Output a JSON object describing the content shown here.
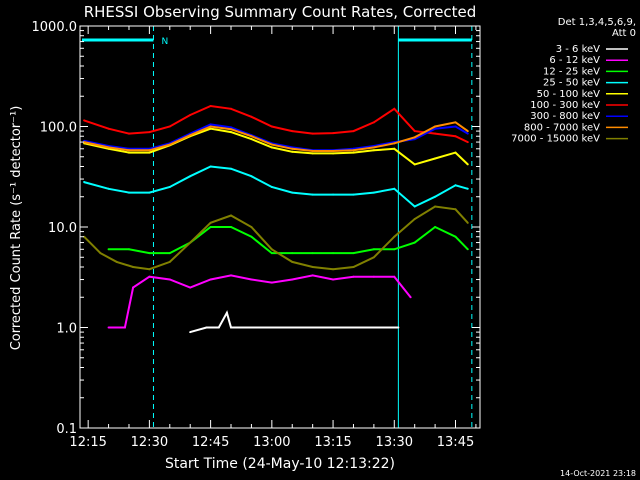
{
  "chart_data": {
    "type": "line",
    "title": "RHESSI Observing Summary Count Rates, Corrected",
    "xlabel": "Start Time (24-May-10 12:13:22)",
    "ylabel": "Corrected Count Rate (s⁻¹ detector⁻¹)",
    "y_scale": "log",
    "ylim": [
      0.1,
      1000
    ],
    "y_ticks": [
      "1000.0",
      "100.0",
      "10.0",
      "1.0",
      "0.1"
    ],
    "y_tick_values": [
      1000,
      100,
      10,
      1,
      0.1
    ],
    "x_range_minutes": [
      "12:13",
      "13:51"
    ],
    "x_ticks": [
      "12:15",
      "12:30",
      "12:45",
      "13:00",
      "13:15",
      "13:30",
      "13:45"
    ],
    "legend_title": [
      "Det 1,3,4,5,6,9,",
      "Att 0"
    ],
    "legend_position": "top-right, outside plot",
    "markers": {
      "night_label": "N",
      "night_end": "12:31",
      "day_start": "13:31",
      "day_end": "13:49"
    },
    "series": [
      {
        "name": "3 - 6 keV",
        "color": "#ffffff",
        "x": [
          "12:40",
          "12:44",
          "12:47",
          "12:49",
          "12:50",
          "12:52",
          "12:56",
          "13:00",
          "13:05",
          "13:10",
          "13:15",
          "13:20",
          "13:25",
          "13:31"
        ],
        "y": [
          0.9,
          1.0,
          1.0,
          1.4,
          1.0,
          1.0,
          1.0,
          1.0,
          1.0,
          1.0,
          1.0,
          1.0,
          1.0,
          1.0
        ]
      },
      {
        "name": "6 - 12 keV",
        "color": "#ff00ff",
        "x": [
          "12:20",
          "12:24",
          "12:26",
          "12:30",
          "12:35",
          "12:40",
          "12:45",
          "12:50",
          "12:55",
          "13:00",
          "13:05",
          "13:10",
          "13:15",
          "13:20",
          "13:25",
          "13:30",
          "13:34"
        ],
        "y": [
          1.0,
          1.0,
          2.5,
          3.2,
          3.0,
          2.5,
          3.0,
          3.3,
          3.0,
          2.8,
          3.0,
          3.3,
          3.0,
          3.2,
          3.2,
          3.2,
          2.0
        ]
      },
      {
        "name": "12 - 25 keV",
        "color": "#00ff00",
        "x": [
          "12:20",
          "12:25",
          "12:30",
          "12:35",
          "12:40",
          "12:45",
          "12:50",
          "12:55",
          "13:00",
          "13:05",
          "13:10",
          "13:15",
          "13:20",
          "13:25",
          "13:30",
          "13:35",
          "13:40",
          "13:45",
          "13:48"
        ],
        "y": [
          6.0,
          6.0,
          5.5,
          5.5,
          7.0,
          10.0,
          10.0,
          8.0,
          5.5,
          5.5,
          5.5,
          5.5,
          5.5,
          6.0,
          6.0,
          7.0,
          10.0,
          8.0,
          6.0
        ]
      },
      {
        "name": "25 - 50 keV",
        "color": "#00ffff",
        "x": [
          "12:14",
          "12:20",
          "12:25",
          "12:30",
          "12:35",
          "12:40",
          "12:45",
          "12:50",
          "12:55",
          "13:00",
          "13:05",
          "13:10",
          "13:15",
          "13:20",
          "13:25",
          "13:30",
          "13:35",
          "13:40",
          "13:45",
          "13:48"
        ],
        "y": [
          28,
          24,
          22,
          22,
          25,
          32,
          40,
          38,
          32,
          25,
          22,
          21,
          21,
          21,
          22,
          24,
          16,
          20,
          26,
          24
        ]
      },
      {
        "name": "50 - 100 keV",
        "color": "#ffff00",
        "x": [
          "12:14",
          "12:20",
          "12:25",
          "12:30",
          "12:35",
          "12:40",
          "12:45",
          "12:50",
          "12:55",
          "13:00",
          "13:05",
          "13:10",
          "13:15",
          "13:20",
          "13:25",
          "13:30",
          "13:35",
          "13:40",
          "13:45",
          "13:48"
        ],
        "y": [
          68,
          60,
          55,
          55,
          65,
          80,
          95,
          88,
          75,
          62,
          56,
          54,
          54,
          55,
          58,
          60,
          42,
          48,
          55,
          42
        ]
      },
      {
        "name": "100 - 300 keV",
        "color": "#ff0000",
        "x": [
          "12:14",
          "12:20",
          "12:25",
          "12:30",
          "12:35",
          "12:40",
          "12:45",
          "12:50",
          "12:55",
          "13:00",
          "13:05",
          "13:10",
          "13:15",
          "13:20",
          "13:25",
          "13:30",
          "13:35",
          "13:40",
          "13:45",
          "13:48"
        ],
        "y": [
          115,
          95,
          85,
          88,
          100,
          130,
          160,
          150,
          125,
          100,
          90,
          85,
          86,
          90,
          110,
          150,
          90,
          85,
          80,
          70
        ]
      },
      {
        "name": "300 - 800 keV",
        "color": "#0000ff",
        "x": [
          "12:14",
          "12:20",
          "12:25",
          "12:30",
          "12:35",
          "12:40",
          "12:45",
          "12:50",
          "12:55",
          "13:00",
          "13:05",
          "13:10",
          "13:15",
          "13:20",
          "13:25",
          "13:30",
          "13:35",
          "13:40",
          "13:45",
          "13:48"
        ],
        "y": [
          72,
          64,
          60,
          60,
          68,
          85,
          105,
          98,
          82,
          68,
          62,
          58,
          58,
          60,
          64,
          70,
          75,
          95,
          100,
          85
        ]
      },
      {
        "name": "800 - 7000 keV",
        "color": "#ff8c00",
        "x": [
          "12:14",
          "12:20",
          "12:25",
          "12:30",
          "12:35",
          "12:40",
          "12:45",
          "12:50",
          "12:55",
          "13:00",
          "13:05",
          "13:10",
          "13:15",
          "13:20",
          "13:25",
          "13:30",
          "13:35",
          "13:40",
          "13:45",
          "13:48"
        ],
        "y": [
          70,
          62,
          58,
          58,
          66,
          82,
          100,
          94,
          80,
          66,
          60,
          57,
          57,
          58,
          62,
          68,
          78,
          100,
          110,
          90
        ]
      },
      {
        "name": "7000 - 15000 keV",
        "color": "#808000",
        "x": [
          "12:14",
          "12:18",
          "12:22",
          "12:26",
          "12:30",
          "12:35",
          "12:40",
          "12:45",
          "12:50",
          "12:55",
          "13:00",
          "13:05",
          "13:10",
          "13:15",
          "13:20",
          "13:25",
          "13:30",
          "13:35",
          "13:40",
          "13:45",
          "13:48"
        ],
        "y": [
          8.0,
          5.5,
          4.5,
          4.0,
          3.8,
          4.5,
          7.0,
          11.0,
          13.0,
          10.0,
          6.0,
          4.5,
          4.0,
          3.8,
          4.0,
          5.0,
          8.0,
          12.0,
          16.0,
          15.0,
          11.0
        ]
      }
    ],
    "footer_timestamp": "14-Oct-2021 23:18"
  }
}
